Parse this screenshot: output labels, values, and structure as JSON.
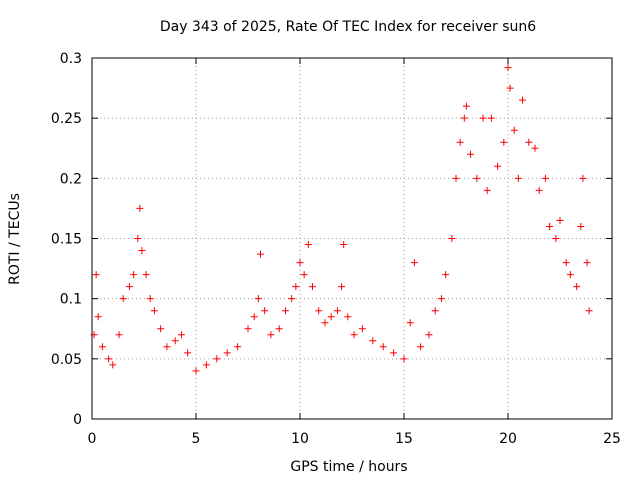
{
  "chart_data": {
    "type": "scatter",
    "title": "Day 343 of 2025, Rate Of TEC Index for receiver sun6",
    "xlabel": "GPS time / hours",
    "ylabel": "ROTI / TECUs",
    "xlim": [
      0,
      25
    ],
    "ylim": [
      0,
      0.3
    ],
    "x_ticks": [
      "0",
      "5",
      "10",
      "15",
      "20",
      "25"
    ],
    "y_ticks": [
      "0",
      "0.05",
      "0.1",
      "0.15",
      "0.2",
      "0.25",
      "0.3"
    ],
    "grid": true,
    "marker": "+",
    "color": "#ff0000",
    "series": [
      {
        "points": [
          [
            0.1,
            0.07
          ],
          [
            0.2,
            0.12
          ],
          [
            0.3,
            0.085
          ],
          [
            0.5,
            0.06
          ],
          [
            0.8,
            0.05
          ],
          [
            1.0,
            0.045
          ],
          [
            1.3,
            0.07
          ],
          [
            1.5,
            0.1
          ],
          [
            1.8,
            0.11
          ],
          [
            2.0,
            0.12
          ],
          [
            2.2,
            0.15
          ],
          [
            2.3,
            0.175
          ],
          [
            2.4,
            0.14
          ],
          [
            2.6,
            0.12
          ],
          [
            2.8,
            0.1
          ],
          [
            3.0,
            0.09
          ],
          [
            3.3,
            0.075
          ],
          [
            3.6,
            0.06
          ],
          [
            4.0,
            0.065
          ],
          [
            4.3,
            0.07
          ],
          [
            4.6,
            0.055
          ],
          [
            5.0,
            0.04
          ],
          [
            5.5,
            0.045
          ],
          [
            6.0,
            0.05
          ],
          [
            6.5,
            0.055
          ],
          [
            7.0,
            0.06
          ],
          [
            7.5,
            0.075
          ],
          [
            7.8,
            0.085
          ],
          [
            8.0,
            0.1
          ],
          [
            8.1,
            0.137
          ],
          [
            8.3,
            0.09
          ],
          [
            8.6,
            0.07
          ],
          [
            9.0,
            0.075
          ],
          [
            9.3,
            0.09
          ],
          [
            9.6,
            0.1
          ],
          [
            9.8,
            0.11
          ],
          [
            10.0,
            0.13
          ],
          [
            10.2,
            0.12
          ],
          [
            10.4,
            0.145
          ],
          [
            10.6,
            0.11
          ],
          [
            10.9,
            0.09
          ],
          [
            11.2,
            0.08
          ],
          [
            11.5,
            0.085
          ],
          [
            11.8,
            0.09
          ],
          [
            12.0,
            0.11
          ],
          [
            12.1,
            0.145
          ],
          [
            12.3,
            0.085
          ],
          [
            12.6,
            0.07
          ],
          [
            13.0,
            0.075
          ],
          [
            13.5,
            0.065
          ],
          [
            14.0,
            0.06
          ],
          [
            14.5,
            0.055
          ],
          [
            15.0,
            0.05
          ],
          [
            15.3,
            0.08
          ],
          [
            15.5,
            0.13
          ],
          [
            15.8,
            0.06
          ],
          [
            16.2,
            0.07
          ],
          [
            16.5,
            0.09
          ],
          [
            16.8,
            0.1
          ],
          [
            17.0,
            0.12
          ],
          [
            17.3,
            0.15
          ],
          [
            17.5,
            0.2
          ],
          [
            17.7,
            0.23
          ],
          [
            17.9,
            0.25
          ],
          [
            18.0,
            0.26
          ],
          [
            18.2,
            0.22
          ],
          [
            18.5,
            0.2
          ],
          [
            18.8,
            0.25
          ],
          [
            19.0,
            0.19
          ],
          [
            19.2,
            0.25
          ],
          [
            19.5,
            0.21
          ],
          [
            19.8,
            0.23
          ],
          [
            20.0,
            0.292
          ],
          [
            20.1,
            0.275
          ],
          [
            20.3,
            0.24
          ],
          [
            20.5,
            0.2
          ],
          [
            20.7,
            0.265
          ],
          [
            21.0,
            0.23
          ],
          [
            21.3,
            0.225
          ],
          [
            21.5,
            0.19
          ],
          [
            21.8,
            0.2
          ],
          [
            22.0,
            0.16
          ],
          [
            22.3,
            0.15
          ],
          [
            22.5,
            0.165
          ],
          [
            22.8,
            0.13
          ],
          [
            23.0,
            0.12
          ],
          [
            23.3,
            0.11
          ],
          [
            23.5,
            0.16
          ],
          [
            23.6,
            0.2
          ],
          [
            23.8,
            0.13
          ],
          [
            23.9,
            0.09
          ]
        ]
      }
    ]
  }
}
